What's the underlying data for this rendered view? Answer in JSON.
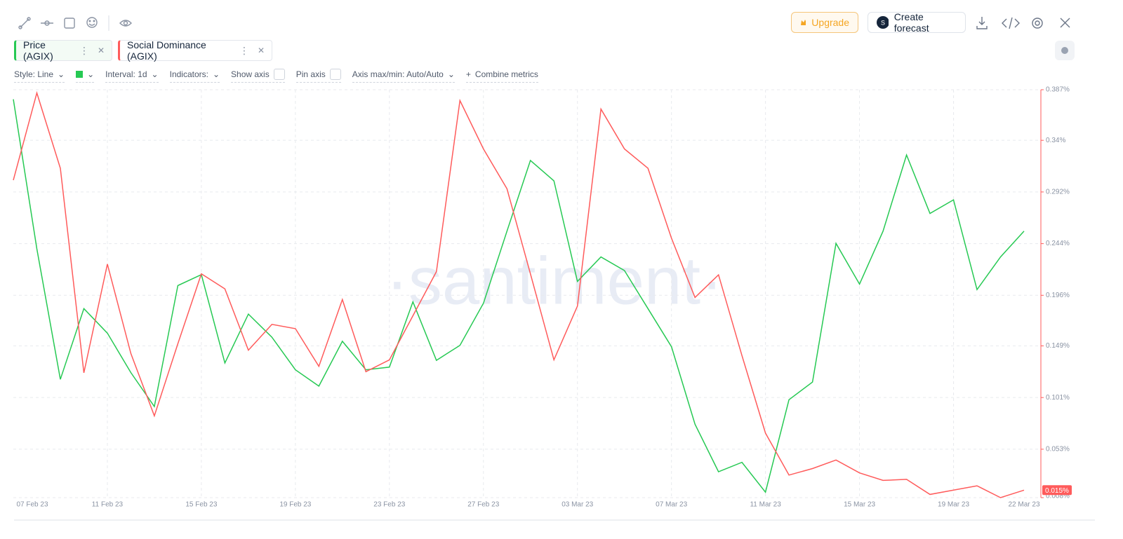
{
  "toolbar": {
    "upgrade": "Upgrade",
    "forecast": "Create forecast"
  },
  "settings": {
    "style": "Style: Line",
    "interval": "Interval: 1d",
    "indicators": "Indicators:",
    "show_axis": "Show axis",
    "pin_axis": "Pin axis",
    "axis_range": "Axis max/min: Auto/Auto",
    "combine": "Combine metrics"
  },
  "watermark": "·santiment·",
  "chart_data": {
    "type": "line",
    "categories": [
      "07 Feb 23",
      null,
      null,
      null,
      "11 Feb 23",
      null,
      null,
      null,
      "15 Feb 23",
      null,
      null,
      null,
      "19 Feb 23",
      null,
      null,
      null,
      "23 Feb 23",
      null,
      null,
      null,
      "27 Feb 23",
      null,
      null,
      null,
      "03 Mar 23",
      null,
      null,
      null,
      "07 Mar 23",
      null,
      null,
      null,
      "11 Mar 23",
      null,
      null,
      null,
      "15 Mar 23",
      null,
      null,
      null,
      "19 Mar 23",
      null,
      null,
      "22 Mar 23"
    ],
    "series": [
      {
        "name": "Price (AGIX)",
        "color": "#26c953",
        "axis": "y2",
        "values": [
          0.593,
          0.483,
          0.387,
          0.439,
          0.421,
          0.392,
          0.367,
          0.456,
          0.464,
          0.399,
          0.435,
          0.418,
          0.394,
          0.382,
          0.415,
          0.394,
          0.396,
          0.444,
          0.401,
          0.412,
          0.443,
          0.496,
          0.548,
          0.533,
          0.459,
          0.477,
          0.467,
          0.439,
          0.411,
          0.354,
          0.319,
          0.326,
          0.304,
          0.372,
          0.385,
          0.487,
          0.457,
          0.496,
          0.552,
          0.509,
          0.519,
          0.453,
          0.477,
          0.496
        ]
      },
      {
        "name": "Social Dominance (AGIX)",
        "color": "#ff5b5b",
        "values": [
          0.303,
          0.384,
          0.314,
          0.124,
          0.225,
          0.142,
          0.084,
          0.151,
          0.216,
          0.202,
          0.145,
          0.169,
          0.165,
          0.13,
          0.192,
          0.125,
          0.136,
          0.177,
          0.218,
          0.377,
          0.332,
          0.295,
          0.216,
          0.136,
          0.186,
          0.369,
          0.332,
          0.314,
          0.249,
          0.194,
          0.215,
          0.14,
          0.068,
          0.029,
          0.035,
          0.043,
          0.031,
          0.024,
          0.025,
          0.011,
          0.015,
          0.019,
          0.008,
          0.015
        ],
        "value_labels": [
          null,
          null,
          null,
          null,
          null,
          null,
          null,
          null,
          null,
          null,
          null,
          null,
          null,
          null,
          null,
          null,
          null,
          null,
          null,
          null,
          null,
          null,
          null,
          null,
          null,
          null,
          null,
          null,
          null,
          null,
          null,
          null,
          null,
          null,
          null,
          null,
          null,
          null,
          null,
          null,
          null,
          null,
          null,
          "0.015%"
        ]
      }
    ],
    "ylim": [
      0.008,
      0.387
    ],
    "yticks": [
      {
        "value": 0.008,
        "label": "0.008%"
      },
      {
        "value": 0.053,
        "label": "0.053%"
      },
      {
        "value": 0.101,
        "label": "0.101%"
      },
      {
        "value": 0.149,
        "label": "0.149%"
      },
      {
        "value": 0.196,
        "label": "0.196%"
      },
      {
        "value": 0.244,
        "label": "0.244%"
      },
      {
        "value": 0.292,
        "label": "0.292%"
      },
      {
        "value": 0.34,
        "label": "0.34%"
      },
      {
        "value": 0.387,
        "label": "0.387%"
      }
    ],
    "y2lim": [
      0.3,
      0.6
    ],
    "grid": true
  }
}
